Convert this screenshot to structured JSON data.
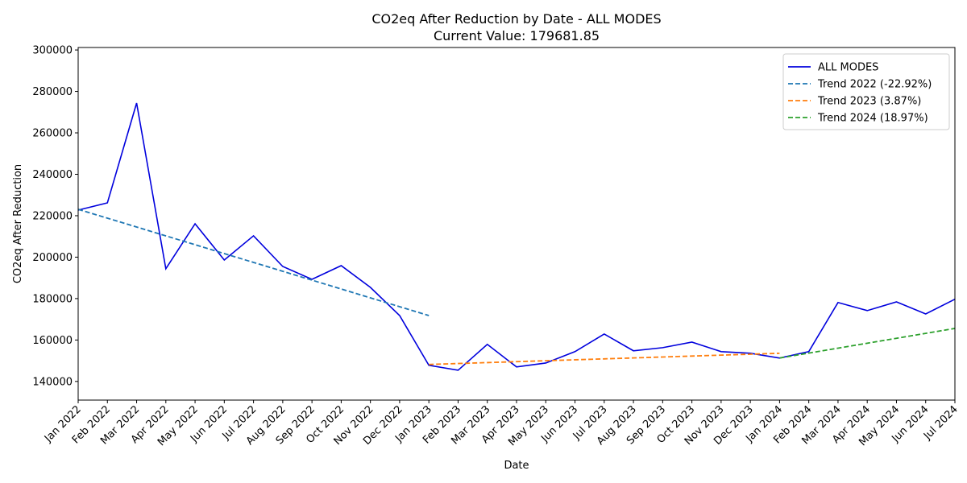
{
  "chart_data": {
    "type": "line",
    "title": "CO2eq After Reduction by Date - ALL MODES",
    "subtitle": "Current Value: 179681.85",
    "x_label": "Date",
    "y_label": "CO2eq After Reduction",
    "categories": [
      "Jan 2022",
      "Feb 2022",
      "Mar 2022",
      "Apr 2022",
      "May 2022",
      "Jun 2022",
      "Jul 2022",
      "Aug 2022",
      "Sep 2022",
      "Oct 2022",
      "Nov 2022",
      "Dec 2022",
      "Jan 2023",
      "Feb 2023",
      "Mar 2023",
      "Apr 2023",
      "May 2023",
      "Jun 2023",
      "Jul 2023",
      "Aug 2023",
      "Sep 2023",
      "Oct 2023",
      "Nov 2023",
      "Dec 2023",
      "Jan 2024",
      "Feb 2024",
      "Mar 2024",
      "Apr 2024",
      "May 2024",
      "Jun 2024",
      "Jul 2024"
    ],
    "series": [
      {
        "name": "ALL MODES",
        "color": "#0000dd",
        "dashed": false,
        "values": [
          222700,
          226200,
          274400,
          194400,
          216100,
          198600,
          210300,
          195500,
          189300,
          195900,
          185400,
          171800,
          147800,
          145400,
          157900,
          147000,
          148900,
          154400,
          162900,
          154800,
          156300,
          159000,
          154400,
          153600,
          151300,
          154400,
          178100,
          174200,
          178400,
          172600,
          179681.85
        ]
      },
      {
        "name": "Trend 2022 (-22.92%)",
        "color": "#1f77b4",
        "dashed": true,
        "values": [
          223100,
          218825,
          214550,
          210275,
          206000,
          201725,
          197450,
          193175,
          188900,
          184625,
          180350,
          176075,
          171800,
          null,
          null,
          null,
          null,
          null,
          null,
          null,
          null,
          null,
          null,
          null,
          null,
          null,
          null,
          null,
          null,
          null,
          null
        ]
      },
      {
        "name": "Trend 2023 (3.87%)",
        "color": "#ff7f0e",
        "dashed": true,
        "values": [
          null,
          null,
          null,
          null,
          null,
          null,
          null,
          null,
          null,
          null,
          null,
          null,
          148200,
          148650,
          149100,
          149550,
          150000,
          150450,
          150900,
          151350,
          151800,
          152250,
          152700,
          153150,
          153600,
          null,
          null,
          null,
          null,
          null,
          null
        ]
      },
      {
        "name": "Trend 2024 (18.97%)",
        "color": "#2ca02c",
        "dashed": true,
        "values": [
          null,
          null,
          null,
          null,
          null,
          null,
          null,
          null,
          null,
          null,
          null,
          null,
          null,
          null,
          null,
          null,
          null,
          null,
          null,
          null,
          null,
          null,
          null,
          null,
          151300,
          153683,
          156067,
          158450,
          160833,
          163217,
          165600
        ]
      }
    ],
    "ylim": [
      131000,
      301200
    ],
    "yticks": [
      140000,
      160000,
      180000,
      200000,
      220000,
      240000,
      260000,
      280000,
      300000
    ],
    "legend": "upper right",
    "grid": false
  }
}
